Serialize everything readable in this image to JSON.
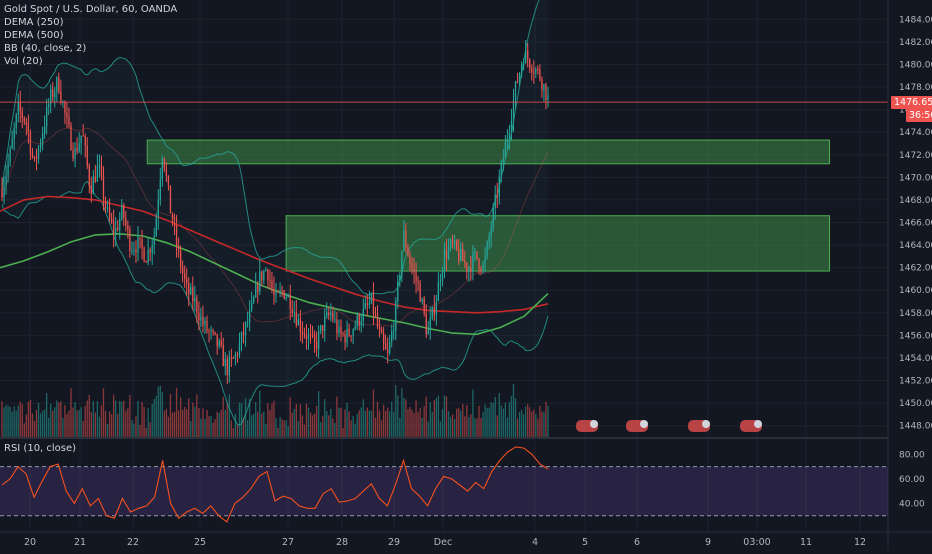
{
  "instrument": {
    "title": "Gold Spot / U.S. Dollar, 60, OANDA",
    "indicators": [
      "DEMA (250)",
      "DEMA (500)",
      "BB (40, close, 2)",
      "Vol (20)"
    ]
  },
  "rsi": {
    "title": "RSI (10, close)",
    "levels": [
      70,
      30
    ]
  },
  "price_axis": {
    "ticks": [
      "1484.000",
      "1482.000",
      "1480.000",
      "1478.000",
      "1476.000",
      "1474.000",
      "1472.000",
      "1470.000",
      "1468.000",
      "1466.000",
      "1464.000",
      "1462.000",
      "1460.000",
      "1458.000",
      "1456.000",
      "1454.000",
      "1452.000",
      "1450.000",
      "1448.000"
    ],
    "last_price": "1476.659",
    "countdown": "36:50"
  },
  "rsi_axis": {
    "ticks": [
      "80.00",
      "60.00",
      "40.00"
    ]
  },
  "time_axis": {
    "labels": [
      "20",
      "21",
      "22",
      "25",
      "27",
      "28",
      "29",
      "Dec",
      "4",
      "5",
      "6",
      "9",
      "03:00",
      "11",
      "12"
    ]
  },
  "colors": {
    "background": "#131722",
    "up": "#26a69a",
    "down": "#ef5350",
    "zone": "#4caf50",
    "dema250": "#c62828",
    "dema500": "#4caf50",
    "bb": "#26a69a",
    "rsi": "#f4511e",
    "rsi_band": "#7e57c2",
    "last_price_line": "#ef5350"
  },
  "chart_data": {
    "type": "candlestick",
    "y_range": [
      1447,
      1485
    ],
    "supply_demand_zones": [
      {
        "from_x": 0.158,
        "to_x": 0.89,
        "low": 1471.2,
        "high": 1473.3
      },
      {
        "from_x": 0.307,
        "to_x": 0.89,
        "low": 1461.7,
        "high": 1466.6
      }
    ],
    "price_path": [
      1469,
      1472,
      1476,
      1475,
      1471,
      1474,
      1477,
      1478.5,
      1475,
      1472,
      1474,
      1469,
      1471,
      1467,
      1465,
      1467,
      1464,
      1464,
      1463,
      1465,
      1472.5,
      1467,
      1463,
      1460,
      1459,
      1457,
      1456,
      1455,
      1453,
      1454,
      1456,
      1458,
      1461,
      1462,
      1459,
      1460,
      1459,
      1457,
      1456,
      1455,
      1457,
      1458,
      1456,
      1456,
      1457,
      1458,
      1459,
      1456,
      1454,
      1458,
      1465,
      1462,
      1460,
      1456,
      1459,
      1463,
      1464,
      1463,
      1462,
      1463,
      1462,
      1466,
      1470,
      1474,
      1478,
      1481,
      1480,
      1479,
      1477
    ],
    "dema250_path": [
      1467,
      1468,
      1468.3,
      1468.2,
      1468,
      1467.5,
      1467,
      1466.2,
      1465.3,
      1464.4,
      1463.5,
      1462.6,
      1461.8,
      1461,
      1460.3,
      1459.6,
      1459,
      1458.5,
      1458.2,
      1458.1,
      1458,
      1458.1,
      1458.3,
      1458.8
    ],
    "dema500_path": [
      1462,
      1462.6,
      1463.4,
      1464.3,
      1464.9,
      1465,
      1464.8,
      1464.2,
      1463.4,
      1462.4,
      1461.4,
      1460.4,
      1459.6,
      1458.9,
      1458.4,
      1457.9,
      1457.5,
      1457.1,
      1456.6,
      1456.2,
      1456.1,
      1456.7,
      1457.7,
      1459.7
    ],
    "rsi_path": [
      55,
      60,
      70,
      64,
      45,
      58,
      70,
      72,
      50,
      40,
      52,
      38,
      44,
      30,
      28,
      44,
      33,
      36,
      38,
      45,
      75,
      40,
      28,
      33,
      36,
      32,
      38,
      30,
      25,
      40,
      45,
      52,
      62,
      66,
      42,
      46,
      44,
      38,
      36,
      36,
      48,
      52,
      41,
      42,
      44,
      50,
      56,
      44,
      38,
      55,
      75,
      52,
      46,
      38,
      52,
      62,
      60,
      55,
      50,
      57,
      52,
      66,
      75,
      82,
      86,
      85,
      80,
      72,
      68
    ]
  }
}
